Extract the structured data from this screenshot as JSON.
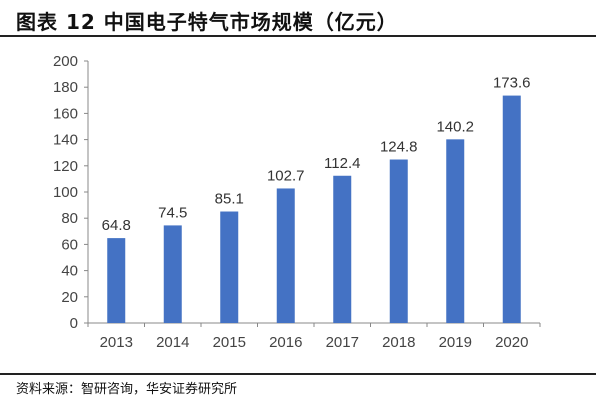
{
  "title": "图表 12 中国电子特气市场规模（亿元）",
  "source": "资料来源：智研咨询，华安证券研究所",
  "chart_data": {
    "type": "bar",
    "categories": [
      "2013",
      "2014",
      "2015",
      "2016",
      "2017",
      "2018",
      "2019",
      "2020"
    ],
    "values": [
      64.8,
      74.5,
      85.1,
      102.7,
      112.4,
      124.8,
      140.2,
      173.6
    ],
    "ylim": [
      0,
      200
    ],
    "yticks": [
      0,
      20,
      40,
      60,
      80,
      100,
      120,
      140,
      160,
      180,
      200
    ],
    "grid": false,
    "bar_color": "#4472C4",
    "data_labels": true
  }
}
